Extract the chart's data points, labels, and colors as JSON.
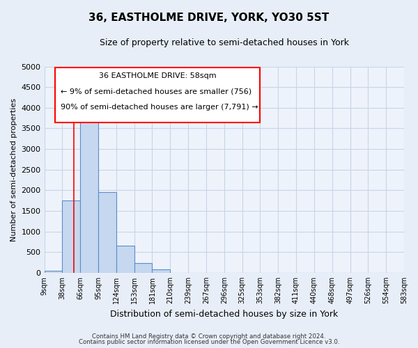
{
  "title": "36, EASTHOLME DRIVE, YORK, YO30 5ST",
  "subtitle": "Size of property relative to semi-detached houses in York",
  "xlabel": "Distribution of semi-detached houses by size in York",
  "ylabel": "Number of semi-detached properties",
  "bin_labels": [
    "9sqm",
    "38sqm",
    "66sqm",
    "95sqm",
    "124sqm",
    "153sqm",
    "181sqm",
    "210sqm",
    "239sqm",
    "267sqm",
    "296sqm",
    "325sqm",
    "353sqm",
    "382sqm",
    "411sqm",
    "440sqm",
    "468sqm",
    "497sqm",
    "526sqm",
    "554sqm",
    "583sqm"
  ],
  "bar_values": [
    50,
    1750,
    4020,
    1950,
    660,
    240,
    85,
    0,
    0,
    0,
    0,
    0,
    0,
    0,
    0,
    0,
    0,
    0,
    0,
    0
  ],
  "bar_color": "#c5d8f0",
  "bar_edge_color": "#5b8dc8",
  "grid_color": "#c8d4e8",
  "background_color": "#e8eef8",
  "plot_bg_color": "#eef3fb",
  "red_line_x": 1.65,
  "annotation_title": "36 EASTHOLME DRIVE: 58sqm",
  "annotation_line1": "← 9% of semi-detached houses are smaller (756)",
  "annotation_line2": "90% of semi-detached houses are larger (7,791) →",
  "ylim": [
    0,
    5000
  ],
  "yticks": [
    0,
    500,
    1000,
    1500,
    2000,
    2500,
    3000,
    3500,
    4000,
    4500,
    5000
  ],
  "footer1": "Contains HM Land Registry data © Crown copyright and database right 2024.",
  "footer2": "Contains public sector information licensed under the Open Government Licence v3.0."
}
